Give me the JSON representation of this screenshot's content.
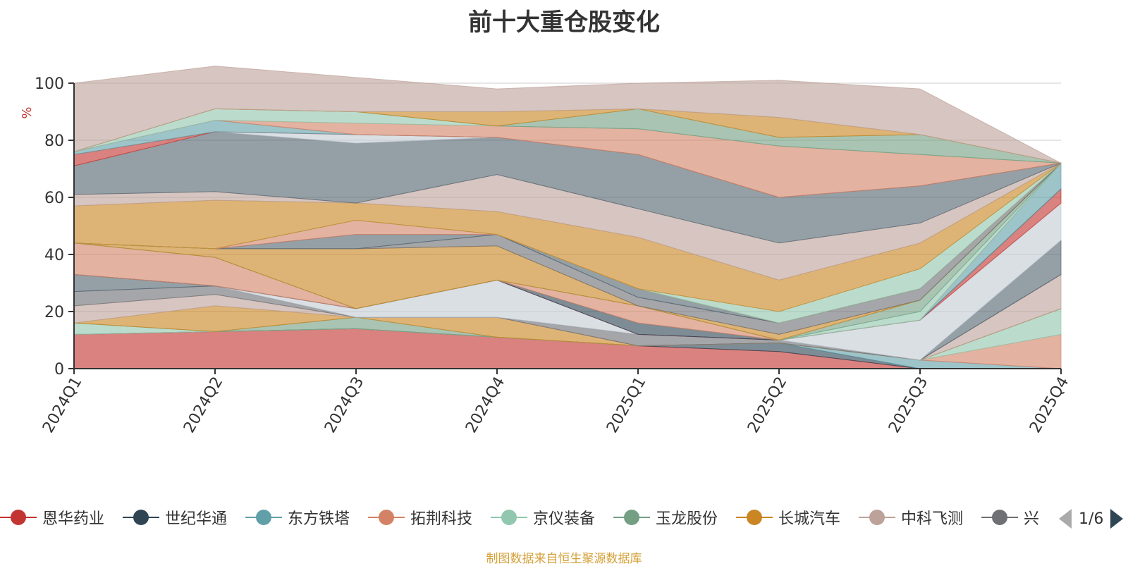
{
  "chart_data": {
    "type": "area",
    "title": "前十大重仓股变化",
    "ylabel": "%",
    "ylim": [
      0,
      100
    ],
    "yticks": [
      0,
      20,
      40,
      60,
      80,
      100
    ],
    "categories": [
      "2024Q1",
      "2024Q2",
      "2024Q3",
      "2024Q4",
      "2025Q1",
      "2025Q2",
      "2025Q3",
      "2025Q4"
    ],
    "grid": true,
    "legend_position": "bottom",
    "series": [
      {
        "name": "恩华药业",
        "color": "#c23531",
        "values": [
          12,
          13,
          14,
          11,
          8,
          6,
          0,
          0
        ]
      },
      {
        "name": "世纪华通",
        "color": "#2f4554",
        "values": [
          0,
          0,
          0,
          0,
          0,
          3,
          0,
          0
        ]
      },
      {
        "name": "东方铁塔",
        "color": "#61a0a8",
        "values": [
          0,
          0,
          0,
          0,
          0,
          0,
          3,
          0
        ]
      },
      {
        "name": "拓荆科技",
        "color": "#d48265",
        "values": [
          0,
          0,
          0,
          0,
          0,
          0,
          0,
          12
        ]
      },
      {
        "name": "京仪装备",
        "color": "#91c7ae",
        "values": [
          4,
          0,
          0,
          0,
          0,
          0,
          0,
          9
        ]
      },
      {
        "name": "玉龙股份",
        "color": "#749f83",
        "values": [
          0,
          0,
          4,
          0,
          0,
          0,
          0,
          0
        ]
      },
      {
        "name": "长城汽车",
        "color": "#ca8622",
        "values": [
          0,
          9,
          0,
          7,
          0,
          0,
          0,
          0
        ]
      },
      {
        "name": "中科飞测",
        "color": "#bda29a",
        "values": [
          6,
          4,
          0,
          0,
          0,
          0,
          0,
          12
        ]
      },
      {
        "name": "",
        "color": "#6e7074",
        "values": [
          5,
          3,
          0,
          0,
          4,
          1,
          0,
          0
        ]
      },
      {
        "name": "",
        "color": "#546570",
        "values": [
          6,
          0,
          0,
          0,
          0,
          0,
          0,
          12
        ]
      },
      {
        "name": "",
        "color": "#c4ccd3",
        "values": [
          0,
          0,
          3,
          13,
          0,
          0,
          14,
          13
        ]
      },
      {
        "name": "",
        "color": "#c23531",
        "values": [
          0,
          0,
          0,
          0,
          0,
          0,
          0,
          5
        ]
      },
      {
        "name": "",
        "color": "#2f4554",
        "values": [
          0,
          0,
          0,
          0,
          4,
          0,
          0,
          0
        ]
      },
      {
        "name": "",
        "color": "#61a0a8",
        "values": [
          0,
          0,
          0,
          0,
          0,
          0,
          0,
          9
        ]
      },
      {
        "name": "",
        "color": "#d48265",
        "values": [
          11,
          10,
          0,
          0,
          6,
          0,
          0,
          0
        ]
      },
      {
        "name": "",
        "color": "#91c7ae",
        "values": [
          0,
          0,
          0,
          0,
          0,
          0,
          3,
          0
        ]
      },
      {
        "name": "",
        "color": "#749f83",
        "values": [
          0,
          0,
          0,
          0,
          0,
          0,
          4,
          0
        ]
      },
      {
        "name": "",
        "color": "#ca8622",
        "values": [
          0,
          3,
          21,
          12,
          0,
          2,
          0,
          0
        ]
      },
      {
        "name": "",
        "color": "#bda29a",
        "values": [
          0,
          0,
          0,
          0,
          0,
          0,
          0,
          0
        ]
      },
      {
        "name": "",
        "color": "#6e7074",
        "values": [
          0,
          0,
          0,
          4,
          3,
          4,
          4,
          0
        ]
      },
      {
        "name": "",
        "color": "#546570",
        "values": [
          0,
          0,
          5,
          0,
          3,
          0,
          0,
          0
        ]
      },
      {
        "name": "",
        "color": "#c4ccd3",
        "values": [
          0,
          0,
          0,
          0,
          0,
          0,
          0,
          0
        ]
      },
      {
        "name": "",
        "color": "#c23531",
        "values": [
          0,
          0,
          0,
          0,
          0,
          0,
          0,
          0
        ]
      },
      {
        "name": "",
        "color": "#2f4554",
        "values": [
          0,
          0,
          0,
          0,
          0,
          0,
          0,
          0
        ]
      },
      {
        "name": "",
        "color": "#61a0a8",
        "values": [
          0,
          0,
          0,
          0,
          0,
          0,
          0,
          0
        ]
      },
      {
        "name": "",
        "color": "#d48265",
        "values": [
          0,
          0,
          5,
          0,
          0,
          0,
          0,
          0
        ]
      },
      {
        "name": "",
        "color": "#91c7ae",
        "values": [
          0,
          0,
          0,
          0,
          0,
          4,
          7,
          0
        ]
      },
      {
        "name": "",
        "color": "#749f83",
        "values": [
          0,
          0,
          0,
          0,
          0,
          0,
          0,
          0
        ]
      },
      {
        "name": "",
        "color": "#ca8622",
        "values": [
          13,
          17,
          6,
          8,
          18,
          11,
          9,
          0
        ]
      },
      {
        "name": "",
        "color": "#bda29a",
        "values": [
          4,
          3,
          0,
          13,
          10,
          13,
          7,
          0
        ]
      },
      {
        "name": "",
        "color": "#6e7074",
        "values": [
          0,
          0,
          0,
          0,
          0,
          0,
          0,
          0
        ]
      },
      {
        "name": "",
        "color": "#546570",
        "values": [
          10,
          21,
          21,
          13,
          19,
          16,
          13,
          0
        ]
      },
      {
        "name": "",
        "color": "#c4ccd3",
        "values": [
          0,
          0,
          3,
          0,
          0,
          0,
          0,
          0
        ]
      },
      {
        "name": "",
        "color": "#c23531",
        "values": [
          4,
          0,
          0,
          0,
          0,
          0,
          0,
          0
        ]
      },
      {
        "name": "",
        "color": "#2f4554",
        "values": [
          0,
          0,
          0,
          0,
          0,
          0,
          0,
          0
        ]
      },
      {
        "name": "",
        "color": "#61a0a8",
        "values": [
          1,
          4,
          0,
          0,
          0,
          0,
          0,
          0
        ]
      },
      {
        "name": "",
        "color": "#d48265",
        "values": [
          0,
          0,
          4,
          4,
          9,
          18,
          11,
          0
        ]
      },
      {
        "name": "",
        "color": "#91c7ae",
        "values": [
          0,
          4,
          4,
          0,
          0,
          0,
          0,
          0
        ]
      },
      {
        "name": "",
        "color": "#749f83",
        "values": [
          0,
          0,
          0,
          0,
          7,
          3,
          7,
          0
        ]
      },
      {
        "name": "",
        "color": "#ca8622",
        "values": [
          0,
          0,
          0,
          5,
          0,
          7,
          0,
          0
        ]
      },
      {
        "name": "",
        "color": "#bda29a",
        "values": [
          24,
          15,
          12,
          8,
          9,
          13,
          16,
          0
        ]
      }
    ]
  },
  "legend": {
    "items": [
      {
        "label": "恩华药业",
        "color": "#c23531"
      },
      {
        "label": "世纪华通",
        "color": "#2f4554"
      },
      {
        "label": "东方铁塔",
        "color": "#61a0a8"
      },
      {
        "label": "拓荆科技",
        "color": "#d48265"
      },
      {
        "label": "京仪装备",
        "color": "#91c7ae"
      },
      {
        "label": "玉龙股份",
        "color": "#749f83"
      },
      {
        "label": "长城汽车",
        "color": "#ca8622"
      },
      {
        "label": "中科飞测",
        "color": "#bda29a"
      },
      {
        "label": "兴",
        "color": "#6e7074"
      }
    ],
    "page_label": "1/6"
  },
  "footer": {
    "source_note": "制图数据来自恒生聚源数据库"
  }
}
